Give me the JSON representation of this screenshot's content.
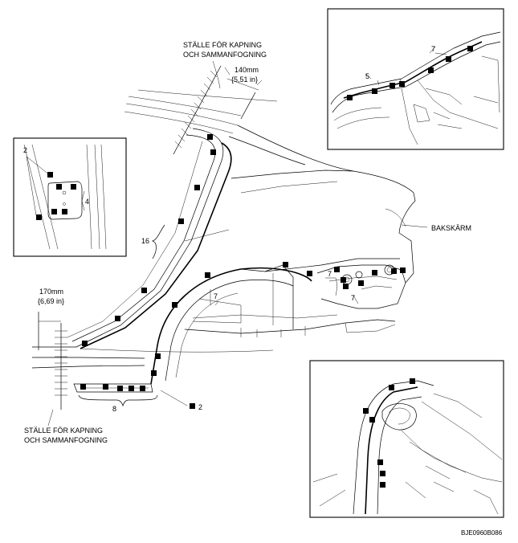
{
  "labels": {
    "cut_top_line1": "STÄLLE FÖR KAPNING",
    "cut_top_line2": "OCH SAMMANFOGNING",
    "dim_top_mm": "140mm",
    "dim_top_in": "{5,51 in}",
    "dim_left_mm": "170mm",
    "dim_left_in": "{6,69 in}",
    "cut_bottom_line1": "STÄLLE FÖR KAPNING",
    "cut_bottom_line2": "OCH SAMMANFOGNING",
    "panel_name": "BAKSKÄRM",
    "callout_2_inset": "2",
    "callout_4": "4",
    "callout_16": "16",
    "callout_7_a": "7",
    "callout_7_b": "7",
    "callout_7_c": "7",
    "callout_8": "8",
    "callout_2_bottom": "2",
    "callout_5": "5",
    "callout_7_inset": "7",
    "figure_code": "BJE0960B086"
  },
  "legend_marker": "square-spot-weld-marker"
}
